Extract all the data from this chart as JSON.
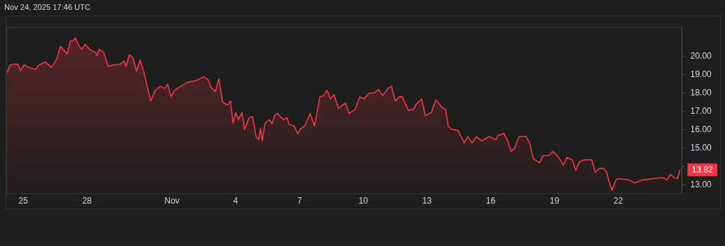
{
  "chart_data": {
    "type": "area",
    "annotations": [
      "Nov 24, 2025 17:46 UTC"
    ],
    "x": [
      "2025-10-24T06:00",
      "2025-10-24T09:00",
      "2025-10-24T13:00",
      "2025-10-24T18:00",
      "2025-10-24T21:00",
      "2025-10-25T01:00",
      "2025-10-25T06:00",
      "2025-10-25T14:00",
      "2025-10-25T18:00",
      "2025-10-26T01:00",
      "2025-10-26T08:00",
      "2025-10-26T14:00",
      "2025-10-26T18:00",
      "2025-10-26T22:00",
      "2025-10-27T02:00",
      "2025-10-27T05:00",
      "2025-10-27T09:00",
      "2025-10-27T11:00",
      "2025-10-27T14:00",
      "2025-10-27T18:00",
      "2025-10-27T22:00",
      "2025-10-28T03:00",
      "2025-10-28T10:00",
      "2025-10-28T11:00",
      "2025-10-28T14:00",
      "2025-10-28T19:00",
      "2025-10-29T00:00",
      "2025-10-29T06:00",
      "2025-10-29T14:00",
      "2025-10-29T18:00",
      "2025-10-29T20:00",
      "2025-10-30T00:00",
      "2025-10-30T04:00",
      "2025-10-30T08:00",
      "2025-10-30T12:00",
      "2025-10-30T16:00",
      "2025-10-30T20:00",
      "2025-10-31T00:00",
      "2025-10-31T05:00",
      "2025-10-31T11:00",
      "2025-10-31T16:00",
      "2025-10-31T19:00",
      "2025-10-31T23:00",
      "2025-11-01T03:00",
      "2025-11-01T10:00",
      "2025-11-01T18:00",
      "2025-11-02T02:00",
      "2025-11-02T12:00",
      "2025-11-02T17:00",
      "2025-11-02T20:00",
      "2025-11-03T01:00",
      "2025-11-03T05:00",
      "2025-11-03T09:00",
      "2025-11-03T15:00",
      "2025-11-03T18:00",
      "2025-11-03T21:00",
      "2025-11-04T00:00",
      "2025-11-04T03:00",
      "2025-11-04T07:00",
      "2025-11-04T10:00",
      "2025-11-04T15:00",
      "2025-11-04T19:00",
      "2025-11-04T23:00",
      "2025-11-05T02:00",
      "2025-11-05T04:00",
      "2025-11-05T06:00",
      "2025-11-05T09:00",
      "2025-11-05T14:00",
      "2025-11-05T17:00",
      "2025-11-05T20:00",
      "2025-11-05T23:00",
      "2025-11-06T06:00",
      "2025-11-06T10:00",
      "2025-11-06T12:00",
      "2025-11-06T18:00",
      "2025-11-06T22:00",
      "2025-11-07T02:00",
      "2025-11-07T06:00",
      "2025-11-07T12:00",
      "2025-11-07T17:00",
      "2025-11-07T23:00",
      "2025-11-08T03:00",
      "2025-11-08T07:00",
      "2025-11-08T11:00",
      "2025-11-08T15:00",
      "2025-11-08T20:00",
      "2025-11-09T04:00",
      "2025-11-09T08:00",
      "2025-11-09T15:00",
      "2025-11-09T20:00",
      "2025-11-10T01:00",
      "2025-11-10T06:00",
      "2025-11-10T13:00",
      "2025-11-10T17:00",
      "2025-11-10T22:00",
      "2025-11-11T04:00",
      "2025-11-11T08:00",
      "2025-11-11T12:00",
      "2025-11-11T17:00",
      "2025-11-11T20:00",
      "2025-11-12T03:00",
      "2025-11-12T09:00",
      "2025-11-12T11:00",
      "2025-11-12T18:00",
      "2025-11-12T22:00",
      "2025-11-13T05:00",
      "2025-11-13T10:00",
      "2025-11-13T17:00",
      "2025-11-13T21:00",
      "2025-11-14T00:00",
      "2025-11-14T04:00",
      "2025-11-14T11:00",
      "2025-11-14T18:00",
      "2025-11-14T22:00",
      "2025-11-15T03:00",
      "2025-11-15T08:00",
      "2025-11-15T14:00",
      "2025-11-15T22:00",
      "2025-11-16T06:00",
      "2025-11-16T08:00",
      "2025-11-16T15:00",
      "2025-11-16T19:00",
      "2025-11-16T23:00",
      "2025-11-17T03:00",
      "2025-11-17T08:00",
      "2025-11-17T16:00",
      "2025-11-17T20:00",
      "2025-11-18T00:00",
      "2025-11-18T07:00",
      "2025-11-18T11:00",
      "2025-11-18T18:00",
      "2025-11-18T22:00",
      "2025-11-19T04:00",
      "2025-11-19T10:00",
      "2025-11-19T14:00",
      "2025-11-19T20:00",
      "2025-11-20T00:00",
      "2025-11-20T04:00",
      "2025-11-20T10:00",
      "2025-11-20T18:00",
      "2025-11-20T22:00",
      "2025-11-21T03:00",
      "2025-11-21T07:00",
      "2025-11-21T11:00",
      "2025-11-21T14:00",
      "2025-11-21T17:00",
      "2025-11-21T21:00",
      "2025-11-21T23:00",
      "2025-11-22T12:00",
      "2025-11-22T18:00",
      "2025-11-23T04:00",
      "2025-11-23T15:00",
      "2025-11-24T02:00",
      "2025-11-24T07:00",
      "2025-11-24T11:00",
      "2025-11-24T15:00",
      "2025-11-24T19:00",
      "2025-11-24T21:30"
    ],
    "series": [
      {
        "color": "#f23645",
        "values": [
          19.12,
          19.52,
          19.58,
          19.58,
          19.23,
          19.54,
          19.41,
          19.29,
          19.54,
          19.69,
          19.41,
          19.86,
          20.55,
          20.32,
          20.15,
          20.83,
          20.89,
          21.01,
          20.66,
          20.38,
          20.66,
          20.38,
          20.21,
          20.03,
          20.38,
          20.21,
          19.46,
          19.54,
          19.58,
          19.75,
          19.46,
          20.09,
          19.92,
          19.18,
          19.81,
          19.18,
          18.38,
          17.57,
          18.15,
          18.38,
          18.26,
          18.49,
          17.8,
          18.15,
          18.38,
          18.6,
          18.66,
          18.89,
          18.72,
          18.32,
          18.09,
          18.78,
          17.52,
          17.35,
          17.57,
          16.37,
          16.95,
          16.55,
          16.95,
          16.03,
          16.66,
          16.72,
          15.63,
          15.46,
          16.09,
          15.4,
          16.37,
          16.55,
          16.32,
          16.77,
          16.89,
          16.55,
          16.66,
          16.32,
          16.2,
          15.8,
          16.09,
          16.2,
          16.89,
          16.2,
          17.8,
          17.86,
          18.15,
          17.69,
          17.92,
          17.17,
          17.46,
          16.89,
          17.12,
          17.8,
          17.69,
          17.98,
          18.03,
          18.2,
          17.86,
          18.26,
          18.38,
          17.57,
          17.8,
          17.8,
          17.06,
          17.12,
          17.35,
          17.69,
          16.77,
          16.95,
          17.63,
          17.23,
          17.12,
          16.2,
          16.03,
          15.97,
          15.29,
          15.63,
          15.29,
          15.63,
          15.4,
          15.63,
          15.46,
          15.69,
          15.8,
          15.4,
          14.83,
          15.0,
          15.63,
          15.63,
          15.29,
          14.43,
          14.2,
          14.6,
          14.6,
          14.83,
          14.54,
          14.09,
          14.49,
          14.37,
          13.8,
          14.26,
          14.37,
          14.37,
          13.69,
          13.91,
          13.91,
          13.69,
          13.11,
          12.71,
          13.23,
          13.34,
          13.28,
          13.11,
          13.28,
          13.34,
          13.4,
          13.28,
          13.57,
          13.4,
          13.34,
          13.82
        ],
        "value_labels": [
          null,
          null,
          null,
          null,
          null,
          null,
          null,
          null,
          null,
          null,
          null,
          null,
          null,
          null,
          null,
          null,
          null,
          null,
          null,
          null,
          null,
          null,
          null,
          null,
          null,
          null,
          null,
          null,
          null,
          null,
          null,
          null,
          null,
          null,
          null,
          null,
          null,
          null,
          null,
          null,
          null,
          null,
          null,
          null,
          null,
          null,
          null,
          null,
          null,
          null,
          null,
          null,
          null,
          null,
          null,
          null,
          null,
          null,
          null,
          null,
          null,
          null,
          null,
          null,
          null,
          null,
          null,
          null,
          null,
          null,
          null,
          null,
          null,
          null,
          null,
          null,
          null,
          null,
          null,
          null,
          null,
          null,
          null,
          null,
          null,
          null,
          null,
          null,
          null,
          null,
          null,
          null,
          null,
          null,
          null,
          null,
          null,
          null,
          null,
          null,
          null,
          null,
          null,
          null,
          null,
          null,
          null,
          null,
          null,
          null,
          null,
          null,
          null,
          null,
          null,
          null,
          null,
          null,
          null,
          null,
          null,
          null,
          null,
          null,
          null,
          null,
          null,
          null,
          null,
          null,
          null,
          null,
          null,
          null,
          null,
          null,
          null,
          null,
          null,
          null,
          null,
          null,
          null,
          null,
          null,
          null,
          null,
          null,
          null,
          null,
          null,
          null,
          null,
          null,
          null,
          null,
          null,
          "13.82"
        ]
      }
    ],
    "xlim": [
      "2025-10-24T05:00",
      "2025-11-24T23:45"
    ],
    "xticks": [
      {
        "value": "2025-10-25",
        "label": "25"
      },
      {
        "value": "2025-10-28",
        "label": "28"
      },
      {
        "value": "2025-11-01",
        "label": "Nov"
      },
      {
        "value": "2025-11-04",
        "label": "4"
      },
      {
        "value": "2025-11-07",
        "label": "7"
      },
      {
        "value": "2025-11-10",
        "label": "10"
      },
      {
        "value": "2025-11-13",
        "label": "13"
      },
      {
        "value": "2025-11-16",
        "label": "16"
      },
      {
        "value": "2025-11-19",
        "label": "19"
      },
      {
        "value": "2025-11-22",
        "label": "22"
      }
    ],
    "ylim": [
      12.5,
      21.6
    ],
    "yticks": [
      {
        "value": 13,
        "label": "13.00"
      },
      {
        "value": 14,
        "label": null
      },
      {
        "value": 15,
        "label": "15.00"
      },
      {
        "value": 16,
        "label": "16.00"
      },
      {
        "value": 17,
        "label": "17.00"
      },
      {
        "value": 18,
        "label": "18.00"
      },
      {
        "value": 19,
        "label": "19.00"
      },
      {
        "value": 20,
        "label": "20.00"
      }
    ],
    "grid": false,
    "legend": false,
    "marker": "none",
    "line_style": "solid"
  }
}
